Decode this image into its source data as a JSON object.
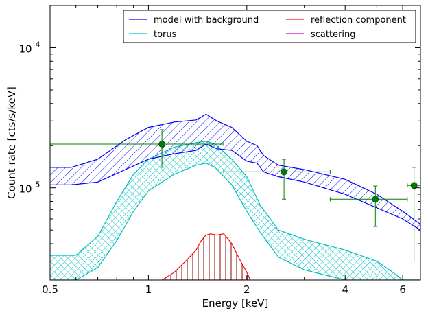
{
  "chart_data": {
    "type": "line",
    "xlabel": "Energy [keV]",
    "ylabel": "Count rate [cts/s/keV]",
    "x_scale": "log",
    "y_scale": "log",
    "xlim": [
      0.5,
      6.8
    ],
    "ylim": [
      2.2e-06,
      0.0002
    ],
    "x_ticks": [
      {
        "value": 0.5,
        "label": "0.5"
      },
      {
        "value": 1,
        "label": "1"
      },
      {
        "value": 2,
        "label": "2"
      },
      {
        "value": 4,
        "label": "4"
      },
      {
        "value": 6,
        "label": "6"
      }
    ],
    "y_ticks": [
      {
        "value": 1e-05,
        "label_base": "10",
        "label_exp": "-5"
      },
      {
        "value": 0.0001,
        "label_base": "10",
        "label_exp": "-4"
      }
    ],
    "legend": {
      "placement": "top-right",
      "entries": [
        {
          "name": "model with background",
          "color": "#0000ff"
        },
        {
          "name": "reflection component",
          "color": "#ff0000"
        },
        {
          "name": "torus",
          "color": "#00bfbf"
        },
        {
          "name": "scattering",
          "color": "#bf00bf"
        }
      ]
    },
    "series": [
      {
        "name": "model with background",
        "kind": "band",
        "color": "#0000ff",
        "hatch": "diagonal",
        "x": [
          0.5,
          0.58,
          0.7,
          0.85,
          1.0,
          1.2,
          1.4,
          1.5,
          1.62,
          1.8,
          2.0,
          2.15,
          2.25,
          2.5,
          3.0,
          4.0,
          5.0,
          6.0,
          6.8
        ],
        "upper": [
          1.4e-05,
          1.4e-05,
          1.6e-05,
          2.2e-05,
          2.7e-05,
          2.95e-05,
          3.05e-05,
          3.35e-05,
          3e-05,
          2.7e-05,
          2.15e-05,
          2e-05,
          1.7e-05,
          1.45e-05,
          1.35e-05,
          1.15e-05,
          9e-06,
          6.8e-06,
          5.5e-06
        ],
        "lower": [
          1.05e-05,
          1.05e-05,
          1.1e-05,
          1.35e-05,
          1.6e-05,
          1.75e-05,
          1.85e-05,
          2.05e-05,
          1.9e-05,
          1.85e-05,
          1.55e-05,
          1.5e-05,
          1.3e-05,
          1.2e-05,
          1.1e-05,
          9e-06,
          7.2e-06,
          6e-06,
          5e-06
        ]
      },
      {
        "name": "torus",
        "kind": "band",
        "color": "#00bfbf",
        "hatch": "crosshatch",
        "x": [
          0.5,
          0.55,
          0.6,
          0.7,
          0.8,
          0.9,
          1.0,
          1.2,
          1.4,
          1.5,
          1.6,
          1.8,
          2.0,
          2.2,
          2.5,
          3.0,
          4.0,
          5.0,
          5.6,
          6.0,
          6.8
        ],
        "upper": [
          3.3e-06,
          3.3e-06,
          3.3e-06,
          4.5e-06,
          8e-06,
          1.25e-05,
          1.6e-05,
          1.95e-05,
          2.1e-05,
          2.15e-05,
          2.05e-05,
          1.6e-05,
          1.2e-05,
          7.5e-06,
          5e-06,
          4.3e-06,
          3.6e-06,
          3e-06,
          2.5e-06,
          2.2e-06,
          2.2e-06
        ],
        "lower": [
          2.2e-06,
          2.2e-06,
          2.2e-06,
          2.7e-06,
          4.2e-06,
          6.8e-06,
          9.5e-06,
          1.25e-05,
          1.45e-05,
          1.5e-05,
          1.4e-05,
          1.05e-05,
          6.8e-06,
          4.8e-06,
          3.2e-06,
          2.6e-06,
          2.2e-06,
          2.2e-06,
          2.2e-06,
          2.2e-06,
          2.2e-06
        ]
      },
      {
        "name": "reflection component",
        "kind": "band",
        "color": "#ff0000",
        "hatch": "vertical",
        "x": [
          1.1,
          1.2,
          1.3,
          1.4,
          1.45,
          1.5,
          1.55,
          1.62,
          1.7,
          1.8,
          1.9,
          2.0,
          2.05
        ],
        "upper": [
          2.2e-06,
          2.5e-06,
          3e-06,
          3.6e-06,
          4.2e-06,
          4.6e-06,
          4.7e-06,
          4.6e-06,
          4.7e-06,
          4e-06,
          3.1e-06,
          2.5e-06,
          2.2e-06
        ],
        "lower": [
          2.2e-06,
          2.2e-06,
          2.2e-06,
          2.2e-06,
          2.2e-06,
          2.2e-06,
          2.2e-06,
          2.2e-06,
          2.2e-06,
          2.2e-06,
          2.2e-06,
          2.2e-06,
          2.2e-06
        ]
      }
    ],
    "data_points": {
      "color": "#008000",
      "points": [
        {
          "x": 1.1,
          "y": 2.05e-05,
          "xerr": [
            0.5,
            1.7
          ],
          "yerr": [
            1.4e-05,
            2.6e-05
          ]
        },
        {
          "x": 2.6,
          "y": 1.3e-05,
          "xerr": [
            1.7,
            3.6
          ],
          "yerr": [
            8.3e-06,
            1.6e-05
          ]
        },
        {
          "x": 4.95,
          "y": 8.3e-06,
          "xerr": [
            3.6,
            6.2
          ],
          "yerr": [
            5.3e-06,
            1.03e-05
          ]
        },
        {
          "x": 6.5,
          "y": 1.04e-05,
          "xerr": [
            6.2,
            6.8
          ],
          "yerr": [
            3e-06,
            1.4e-05
          ]
        }
      ]
    }
  }
}
